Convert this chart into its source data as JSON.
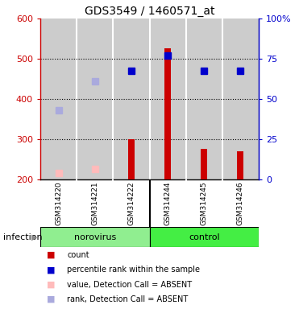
{
  "title": "GDS3549 / 1460571_at",
  "samples": [
    "GSM314220",
    "GSM314221",
    "GSM314222",
    "GSM314244",
    "GSM314245",
    "GSM314246"
  ],
  "groups": [
    "norovirus",
    "norovirus",
    "norovirus",
    "control",
    "control",
    "control"
  ],
  "group_labels": [
    "norovirus",
    "control"
  ],
  "norovirus_color": "#90ee90",
  "control_color": "#44ee44",
  "factor_label": "infection",
  "bar_values": [
    null,
    null,
    300,
    525,
    275,
    270
  ],
  "bar_color": "#cc0000",
  "bar_baseline": 200,
  "pink_values": [
    215,
    225,
    null,
    null,
    null,
    null
  ],
  "pink_color": "#ffbbbb",
  "blue_square_values": [
    null,
    null,
    470,
    507,
    470,
    470
  ],
  "blue_square_color": "#0000cc",
  "lavender_values": [
    372,
    443,
    null,
    null,
    null,
    null
  ],
  "lavender_color": "#aaaadd",
  "ylim_left": [
    200,
    600
  ],
  "ylim_right": [
    0,
    100
  ],
  "yticks_left": [
    200,
    300,
    400,
    500,
    600
  ],
  "yticks_right": [
    0,
    25,
    50,
    75,
    100
  ],
  "ytick_labels_right": [
    "0",
    "25",
    "50",
    "75",
    "100%"
  ],
  "left_axis_color": "#cc0000",
  "right_axis_color": "#0000cc",
  "legend_items": [
    {
      "label": "count",
      "color": "#cc0000"
    },
    {
      "label": "percentile rank within the sample",
      "color": "#0000cc"
    },
    {
      "label": "value, Detection Call = ABSENT",
      "color": "#ffbbbb"
    },
    {
      "label": "rank, Detection Call = ABSENT",
      "color": "#aaaadd"
    }
  ],
  "col_bg_color": "#cccccc",
  "plot_bg": "#ffffff",
  "bar_width": 0.18
}
